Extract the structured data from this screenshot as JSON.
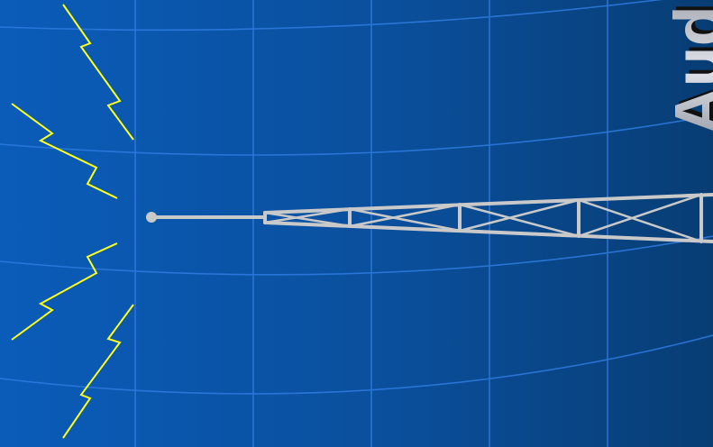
{
  "scene": {
    "background": {
      "gradient_left": "#0a5cb9",
      "gradient_right": "#083d74",
      "grid_color": "#2f7be0"
    },
    "signal_bolts": {
      "color": "#ffff1a",
      "count": 4
    },
    "antenna_tower": {
      "color": "#c9c9c9",
      "icon": "radio-tower-icon"
    },
    "logo": {
      "text": "Aud",
      "fill": "#c7c9cf",
      "shadow": "#111111"
    }
  }
}
